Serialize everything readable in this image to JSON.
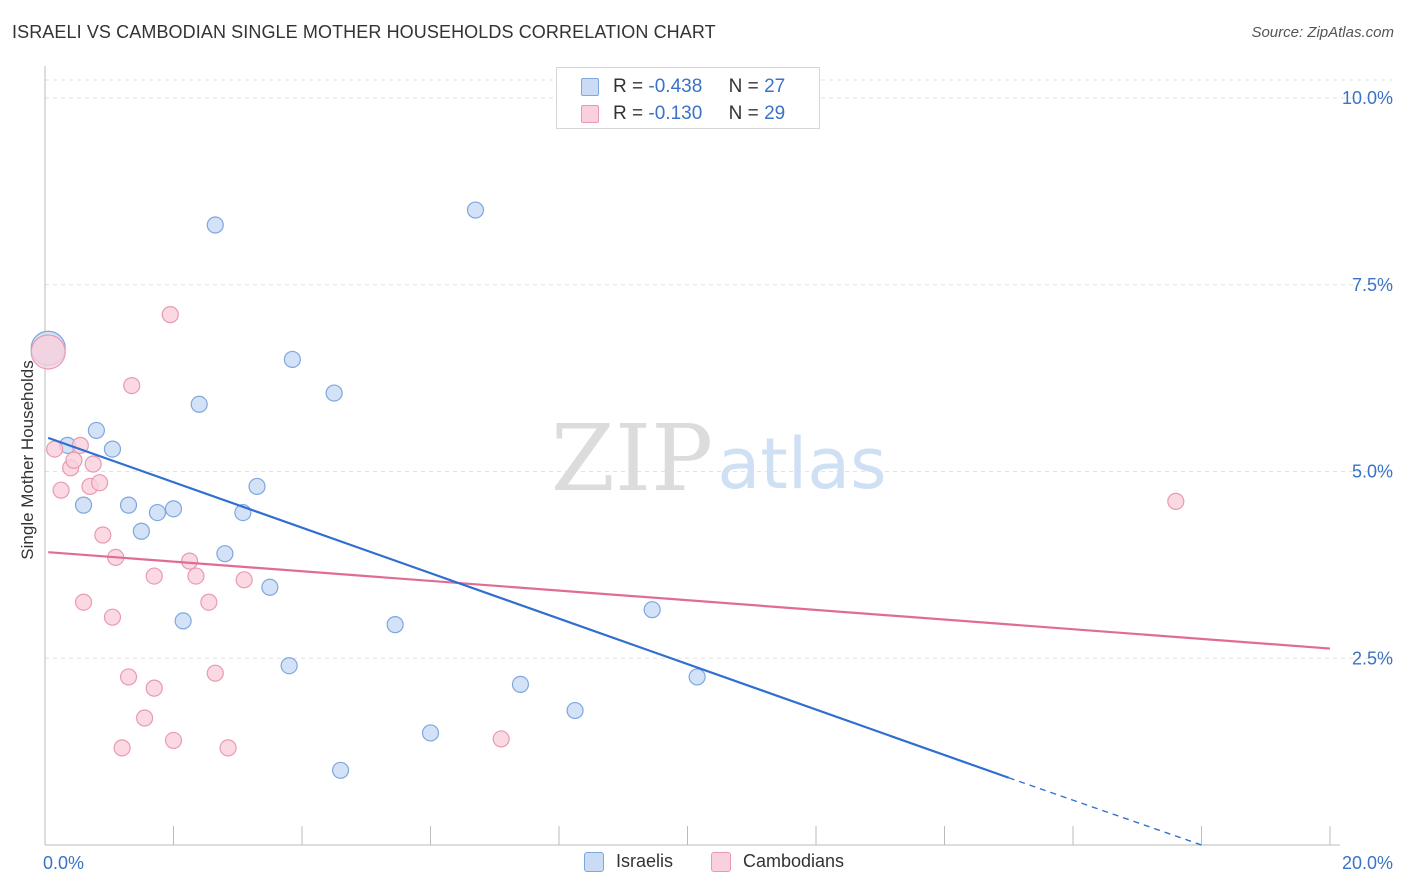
{
  "header": {
    "title": "ISRAELI VS CAMBODIAN SINGLE MOTHER HOUSEHOLDS CORRELATION CHART",
    "source": "Source: ZipAtlas.com"
  },
  "watermark": {
    "zip": "ZIP",
    "atlas": "atlas"
  },
  "legend": {
    "israelis": {
      "r_label": "R =",
      "r_value": "-0.438",
      "n_label": "N =",
      "n_value": "27"
    },
    "cambodians": {
      "r_label": "R =",
      "r_value": "-0.130",
      "n_label": "N =",
      "n_value": "29"
    }
  },
  "colors": {
    "israelis_fill": "#c9dbf5",
    "israelis_stroke": "#7ea7de",
    "israelis_line": "#2f6fd0",
    "cambodians_fill": "#f9d0dc",
    "cambodians_stroke": "#e99ab2",
    "cambodians_line": "#e06c95",
    "tick_text": "#3a73c6",
    "grid": "#e2e2e2"
  },
  "chart_data": {
    "type": "scatter",
    "title": "ISRAELI VS CAMBODIAN SINGLE MOTHER HOUSEHOLDS CORRELATION CHART",
    "xlabel": "",
    "ylabel": "Single Mother Households",
    "xlim": [
      0,
      20
    ],
    "ylim": [
      0,
      10.2
    ],
    "x_tick_labels": [
      {
        "value": 0,
        "label": "0.0%"
      },
      {
        "value": 20,
        "label": "20.0%"
      }
    ],
    "y_ticks": [
      {
        "value": 2.5,
        "label": "2.5%"
      },
      {
        "value": 5.0,
        "label": "5.0%"
      },
      {
        "value": 7.5,
        "label": "7.5%"
      },
      {
        "value": 10.0,
        "label": "10.0%"
      }
    ],
    "series": [
      {
        "name": "Israelis",
        "points": [
          {
            "x": 0.05,
            "y": 6.65,
            "size": "large"
          },
          {
            "x": 0.35,
            "y": 5.35
          },
          {
            "x": 0.8,
            "y": 5.55
          },
          {
            "x": 1.05,
            "y": 5.3
          },
          {
            "x": 0.6,
            "y": 4.55
          },
          {
            "x": 1.3,
            "y": 4.55
          },
          {
            "x": 1.75,
            "y": 4.45
          },
          {
            "x": 1.5,
            "y": 4.2
          },
          {
            "x": 2.0,
            "y": 4.5
          },
          {
            "x": 2.65,
            "y": 8.3
          },
          {
            "x": 2.4,
            "y": 5.9
          },
          {
            "x": 3.3,
            "y": 4.8
          },
          {
            "x": 3.08,
            "y": 4.45
          },
          {
            "x": 2.8,
            "y": 3.9
          },
          {
            "x": 2.15,
            "y": 3.0
          },
          {
            "x": 3.5,
            "y": 3.45
          },
          {
            "x": 3.85,
            "y": 6.5
          },
          {
            "x": 4.5,
            "y": 6.05
          },
          {
            "x": 3.8,
            "y": 2.4
          },
          {
            "x": 5.45,
            "y": 2.95
          },
          {
            "x": 4.6,
            "y": 1.0
          },
          {
            "x": 6.7,
            "y": 8.5
          },
          {
            "x": 6.0,
            "y": 1.5
          },
          {
            "x": 7.4,
            "y": 2.15
          },
          {
            "x": 8.25,
            "y": 1.8
          },
          {
            "x": 9.45,
            "y": 3.15
          },
          {
            "x": 10.15,
            "y": 2.25
          }
        ]
      },
      {
        "name": "Cambodians",
        "points": [
          {
            "x": 0.05,
            "y": 6.6,
            "size": "large"
          },
          {
            "x": 0.15,
            "y": 5.3
          },
          {
            "x": 0.4,
            "y": 5.05
          },
          {
            "x": 0.45,
            "y": 5.15
          },
          {
            "x": 0.55,
            "y": 5.35
          },
          {
            "x": 0.75,
            "y": 5.1
          },
          {
            "x": 0.25,
            "y": 4.75
          },
          {
            "x": 0.7,
            "y": 4.8
          },
          {
            "x": 0.85,
            "y": 4.85
          },
          {
            "x": 0.9,
            "y": 4.15
          },
          {
            "x": 1.1,
            "y": 3.85
          },
          {
            "x": 1.35,
            "y": 6.15
          },
          {
            "x": 1.95,
            "y": 7.1
          },
          {
            "x": 1.7,
            "y": 3.6
          },
          {
            "x": 2.25,
            "y": 3.8
          },
          {
            "x": 2.35,
            "y": 3.6
          },
          {
            "x": 3.1,
            "y": 3.55
          },
          {
            "x": 0.6,
            "y": 3.25
          },
          {
            "x": 1.05,
            "y": 3.05
          },
          {
            "x": 2.55,
            "y": 3.25
          },
          {
            "x": 1.3,
            "y": 2.25
          },
          {
            "x": 1.7,
            "y": 2.1
          },
          {
            "x": 2.65,
            "y": 2.3
          },
          {
            "x": 1.55,
            "y": 1.7
          },
          {
            "x": 1.2,
            "y": 1.3
          },
          {
            "x": 2.0,
            "y": 1.4
          },
          {
            "x": 2.85,
            "y": 1.3
          },
          {
            "x": 7.1,
            "y": 1.42
          },
          {
            "x": 17.6,
            "y": 4.6
          }
        ]
      }
    ],
    "trendlines": [
      {
        "series": "Israelis",
        "x0": 0.05,
        "y0": 5.45,
        "x1": 15.0,
        "y1": 0.9,
        "dashed_to": {
          "x": 18.0,
          "y": 0.0
        }
      },
      {
        "series": "Cambodians",
        "x0": 0.05,
        "y0": 3.92,
        "x1": 20.0,
        "y1": 2.63
      }
    ]
  },
  "bottom_legend": {
    "israelis": "Israelis",
    "cambodians": "Cambodians"
  }
}
